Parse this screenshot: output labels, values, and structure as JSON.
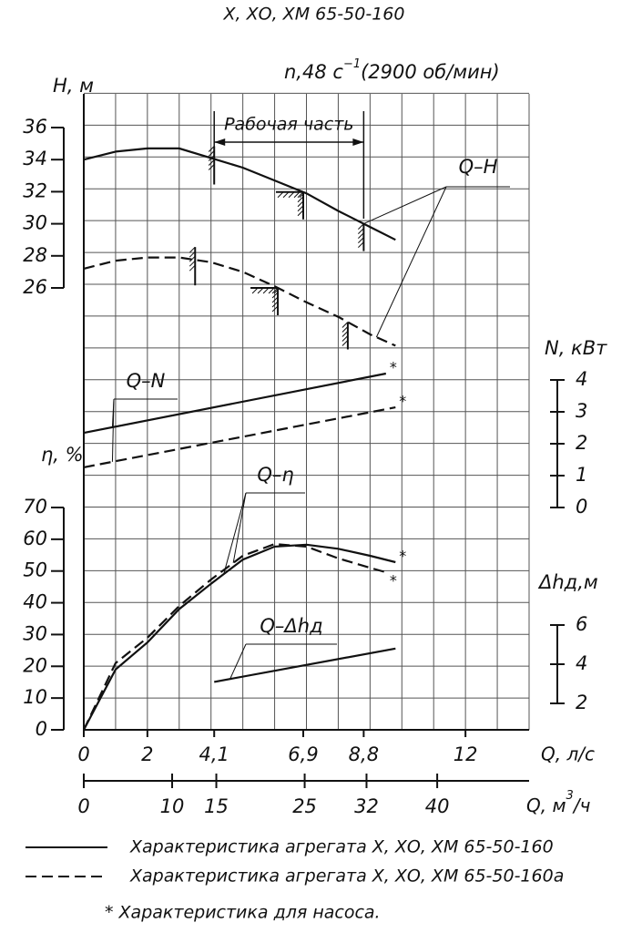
{
  "title": "Х, ХО, ХМ 65-50-160",
  "speed": {
    "text": "n,48 с",
    "sup": "−1",
    "rest": "(2900 об/мин)"
  },
  "chart_data": {
    "type": "line",
    "x_axis": {
      "label": "Q, л/с",
      "xlim": [
        0,
        14
      ],
      "xticks": [
        0,
        2,
        {
          "value": 4.1,
          "label": "4,1"
        },
        {
          "value": 6.9,
          "label": "6,9"
        },
        {
          "value": 8.8,
          "label": "8,8"
        },
        12
      ]
    },
    "x2_axis": {
      "label": "Q, м",
      "sup": "3",
      "tail": "/ч",
      "xlim": [
        0,
        50.4
      ],
      "xticks": [
        0,
        10,
        15,
        25,
        32,
        40
      ]
    },
    "axes": {
      "H": {
        "label": "Н, м",
        "ylim": [
          26,
          36
        ],
        "yticks": [
          26,
          28,
          30,
          32,
          34,
          36
        ]
      },
      "eta": {
        "label": "η, %",
        "ylim": [
          0,
          70
        ],
        "yticks": [
          0,
          10,
          20,
          30,
          40,
          50,
          60,
          70
        ]
      },
      "N": {
        "label": "N, кВт",
        "ylim": [
          0,
          4
        ],
        "yticks": [
          0,
          1,
          2,
          3,
          4
        ]
      },
      "dh": {
        "label": "Δhд,м",
        "ylim": [
          2,
          6
        ],
        "yticks": [
          2,
          4,
          6
        ]
      }
    },
    "working_part": "Рабочая часть",
    "curve_labels": {
      "H": "Q–H",
      "N": "Q–N",
      "eta": "Q–η",
      "dh": "Q–Δhд"
    },
    "series": [
      {
        "name": "Характеристика агрегата Х, ХО, ХМ 65-50-160",
        "axis": "H",
        "dash": false,
        "x": [
          0,
          1,
          2,
          3,
          4,
          5,
          6,
          7,
          8,
          9,
          9.8
        ],
        "values": [
          34,
          34.5,
          34.7,
          34.7,
          34.1,
          33.5,
          32.7,
          31.9,
          30.8,
          29.8,
          29
        ],
        "marks": [
          4.1,
          6.9,
          8.8
        ]
      },
      {
        "name": "Характеристика агрегата Х, ХО, ХМ 65-50-160а",
        "axis": "H",
        "dash": true,
        "x": [
          0,
          1,
          2,
          3,
          4,
          5,
          6,
          7,
          8,
          9,
          9.8
        ],
        "values": [
          27.2,
          27.7,
          27.9,
          27.9,
          27.6,
          27,
          26.1,
          25.1,
          24.2,
          23.1,
          22.4
        ],
        "marks": [
          3.5,
          6.1,
          8.3
        ]
      },
      {
        "axis": "N",
        "dash": false,
        "x": [
          0,
          9.5
        ],
        "values": [
          2.34,
          4.2
        ],
        "end_mark": "*"
      },
      {
        "axis": "N",
        "dash": true,
        "x": [
          0,
          9.8
        ],
        "values": [
          1.26,
          3.14
        ],
        "end_mark": "*"
      },
      {
        "axis": "eta",
        "dash": false,
        "x": [
          0,
          1,
          2,
          3,
          4,
          5,
          6,
          7,
          8,
          9,
          9.8
        ],
        "values": [
          0,
          19,
          27.5,
          38,
          46,
          53.6,
          57.7,
          58.3,
          57,
          54.8,
          52.8
        ],
        "end_mark": "*"
      },
      {
        "axis": "eta",
        "dash": true,
        "x": [
          0,
          1,
          2,
          3,
          4,
          5,
          6,
          7,
          8,
          9,
          9.5
        ],
        "values": [
          0,
          21,
          29,
          39,
          47.3,
          54.8,
          58.5,
          57.7,
          54,
          51,
          49.6
        ],
        "end_mark": "*"
      },
      {
        "axis": "dh",
        "dash": false,
        "x": [
          4.1,
          9.8
        ],
        "values": [
          3.1,
          4.8
        ]
      }
    ]
  },
  "footnote": "* Характеристика для насоса."
}
